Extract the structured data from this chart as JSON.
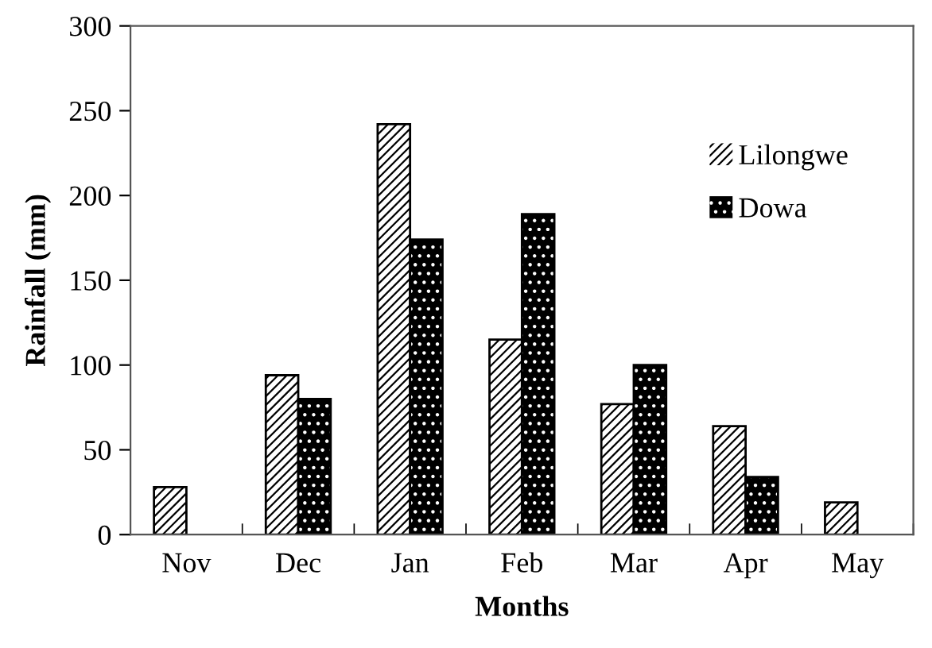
{
  "chart_data": {
    "type": "bar",
    "xlabel": "Months",
    "ylabel": "Rainfall (mm)",
    "categories": [
      "Nov",
      "Dec",
      "Jan",
      "Feb",
      "Mar",
      "Apr",
      "May"
    ],
    "series": [
      {
        "name": "Lilongwe",
        "color": "#ffffff",
        "values": [
          28,
          94,
          242,
          115,
          77,
          64,
          19
        ]
      },
      {
        "name": "Dowa",
        "color": "#000000",
        "values": [
          null,
          80,
          174,
          189,
          100,
          34,
          null
        ]
      }
    ],
    "ylim": [
      0,
      300
    ],
    "yticks": [
      0,
      50,
      100,
      150,
      200,
      250,
      300
    ],
    "grid": false,
    "legend": "top right"
  }
}
